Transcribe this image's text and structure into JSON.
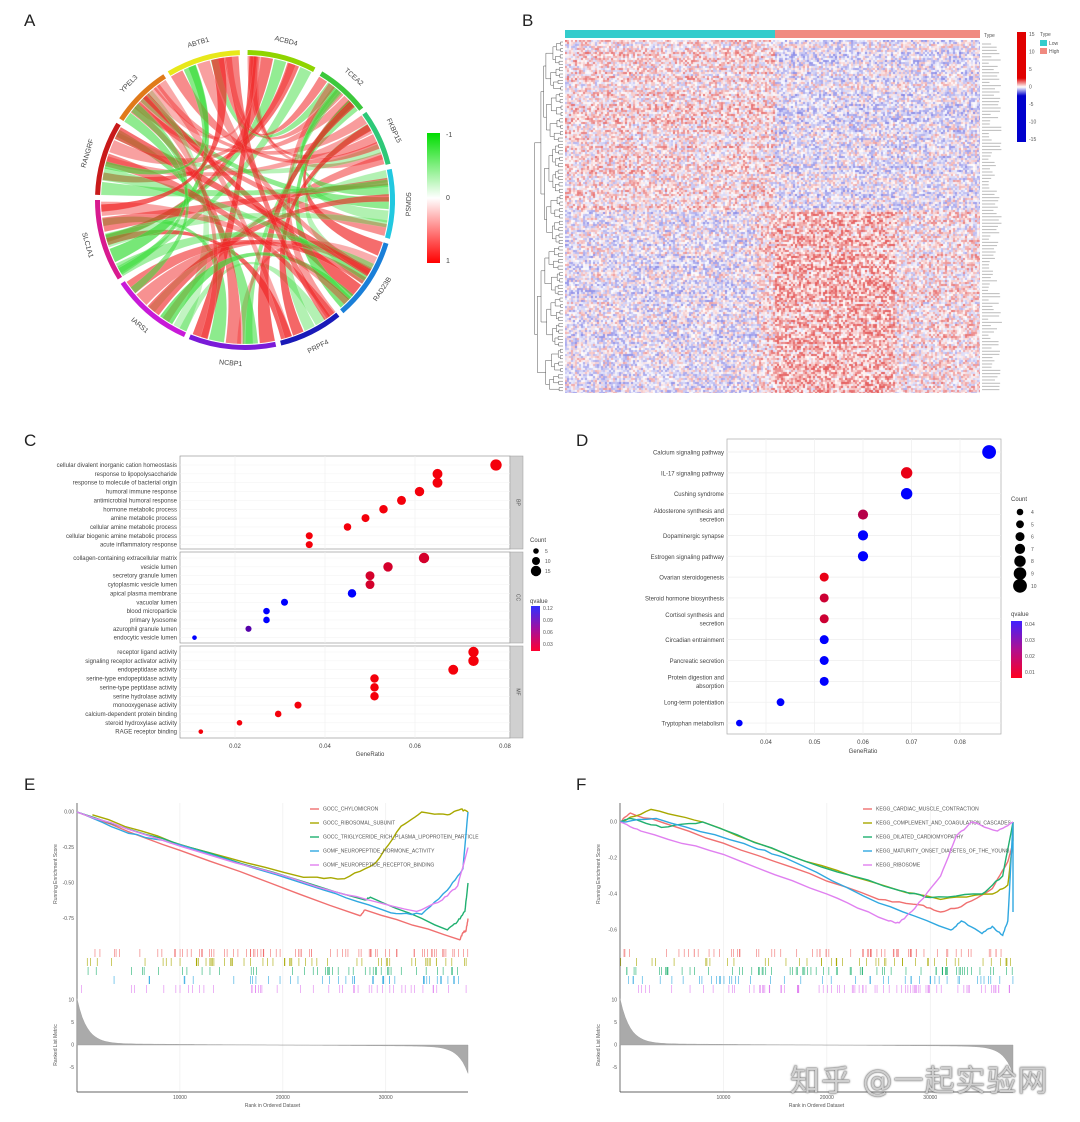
{
  "panel_labels": [
    "A",
    "B",
    "C",
    "D",
    "E",
    "F"
  ],
  "watermark": "知乎 @一起实验网",
  "chart_data": [
    {
      "panel": "A",
      "type": "chord",
      "genes": [
        {
          "name": "ACBD4",
          "color": "#8fd400"
        },
        {
          "name": "TCEA2",
          "color": "#3cc83c"
        },
        {
          "name": "FKBP15",
          "color": "#2ec878"
        },
        {
          "name": "PSMD5",
          "color": "#22c8e0"
        },
        {
          "name": "RAD23B",
          "color": "#1a7fd8"
        },
        {
          "name": "PRPF4",
          "color": "#1a1ab8"
        },
        {
          "name": "NCBP1",
          "color": "#7a1ad8"
        },
        {
          "name": "IARS1",
          "color": "#c81ad8"
        },
        {
          "name": "SLC1A1",
          "color": "#d81a8f"
        },
        {
          "name": "RANGRF",
          "color": "#c81a1a"
        },
        {
          "name": "YPEL3",
          "color": "#e07a1a"
        },
        {
          "name": "ABTB1",
          "color": "#e8e81a"
        }
      ],
      "colorbar": {
        "ticks": [
          "-1",
          "0",
          "1"
        ],
        "low_color": "#00dd00",
        "mid_color": "#ffffff",
        "high_color": "#ff0000"
      }
    },
    {
      "panel": "B",
      "type": "heatmap",
      "annotation_title": "Type",
      "groups": [
        {
          "name": "Low",
          "color": "#33cccc"
        },
        {
          "name": "High",
          "color": "#f08a80"
        }
      ],
      "legend_title": "Type",
      "colorbar_ticks": [
        "15",
        "10",
        "5",
        "0",
        "-5",
        "-10",
        "-15"
      ],
      "colors": {
        "high": "#e00000",
        "mid": "#ffffff",
        "low": "#0000cc"
      }
    },
    {
      "panel": "C",
      "type": "scatter",
      "xlabel": "GeneRatio",
      "xticks": [
        "0.02",
        "0.04",
        "0.06",
        "0.08"
      ],
      "xlim": [
        0.01,
        0.08
      ],
      "size_legend": {
        "title": "Count",
        "values": [
          5,
          10,
          15
        ]
      },
      "color_legend": {
        "title": "qvalue",
        "ticks": [
          "0.12",
          "0.09",
          "0.06",
          "0.03"
        ]
      },
      "facets": [
        {
          "name": "BP",
          "terms": [
            {
              "term": "cellular divalent inorganic cation homeostasis",
              "ratio": 0.078,
              "count": 17,
              "q": 0.005
            },
            {
              "term": "response to lipopolysaccharide",
              "ratio": 0.065,
              "count": 14,
              "q": 0.005
            },
            {
              "term": "response to molecule of bacterial origin",
              "ratio": 0.065,
              "count": 14,
              "q": 0.005
            },
            {
              "term": "humoral immune response",
              "ratio": 0.061,
              "count": 13,
              "q": 0.005
            },
            {
              "term": "antimicrobial humoral response",
              "ratio": 0.057,
              "count": 12,
              "q": 0.005
            },
            {
              "term": "hormone metabolic process",
              "ratio": 0.053,
              "count": 11,
              "q": 0.005
            },
            {
              "term": "amine metabolic process",
              "ratio": 0.049,
              "count": 10,
              "q": 0.005
            },
            {
              "term": "cellular amine metabolic process",
              "ratio": 0.045,
              "count": 9,
              "q": 0.005
            },
            {
              "term": "cellular biogenic amine metabolic process",
              "ratio": 0.0365,
              "count": 8,
              "q": 0.005
            },
            {
              "term": "acute inflammatory response",
              "ratio": 0.0365,
              "count": 8,
              "q": 0.005
            }
          ]
        },
        {
          "name": "CC",
          "terms": [
            {
              "term": "collagen-containing extracellular matrix",
              "ratio": 0.062,
              "count": 15,
              "q": 0.02
            },
            {
              "term": "vesicle lumen",
              "ratio": 0.054,
              "count": 13,
              "q": 0.02
            },
            {
              "term": "secretory granule lumen",
              "ratio": 0.05,
              "count": 12,
              "q": 0.02
            },
            {
              "term": "cytoplasmic vesicle lumen",
              "ratio": 0.05,
              "count": 12,
              "q": 0.02
            },
            {
              "term": "apical plasma membrane",
              "ratio": 0.046,
              "count": 11,
              "q": 0.12
            },
            {
              "term": "vacuolar lumen",
              "ratio": 0.031,
              "count": 8,
              "q": 0.12
            },
            {
              "term": "blood microparticle",
              "ratio": 0.027,
              "count": 7,
              "q": 0.12
            },
            {
              "term": "primary lysosome",
              "ratio": 0.027,
              "count": 7,
              "q": 0.12
            },
            {
              "term": "azurophil granule lumen",
              "ratio": 0.023,
              "count": 6,
              "q": 0.08
            },
            {
              "term": "endocytic vesicle lumen",
              "ratio": 0.011,
              "count": 3,
              "q": 0.12
            }
          ]
        },
        {
          "name": "MF",
          "terms": [
            {
              "term": "receptor ligand activity",
              "ratio": 0.073,
              "count": 15,
              "q": 0.005
            },
            {
              "term": "signaling receptor activator activity",
              "ratio": 0.073,
              "count": 15,
              "q": 0.005
            },
            {
              "term": "endopeptidase activity",
              "ratio": 0.0685,
              "count": 14,
              "q": 0.005
            },
            {
              "term": "serine-type endopeptidase activity",
              "ratio": 0.051,
              "count": 11,
              "q": 0.005
            },
            {
              "term": "serine-type peptidase activity",
              "ratio": 0.051,
              "count": 11,
              "q": 0.005
            },
            {
              "term": "serine hydrolase activity",
              "ratio": 0.051,
              "count": 11,
              "q": 0.005
            },
            {
              "term": "monooxygenase activity",
              "ratio": 0.034,
              "count": 8,
              "q": 0.005
            },
            {
              "term": "calcium-dependent protein binding",
              "ratio": 0.0296,
              "count": 7,
              "q": 0.005
            },
            {
              "term": "steroid hydroxylase activity",
              "ratio": 0.021,
              "count": 5,
              "q": 0.005
            },
            {
              "term": "RAGE receptor binding",
              "ratio": 0.0124,
              "count": 3,
              "q": 0.005
            }
          ]
        }
      ]
    },
    {
      "panel": "D",
      "type": "scatter",
      "xlabel": "GeneRatio",
      "xticks": [
        "0.04",
        "0.05",
        "0.06",
        "0.07",
        "0.08"
      ],
      "size_legend": {
        "title": "Count",
        "values": [
          4,
          5,
          6,
          7,
          8,
          9,
          10
        ]
      },
      "color_legend": {
        "title": "qvalue",
        "ticks": [
          "0.04",
          "0.03",
          "0.02",
          "0.01"
        ]
      },
      "terms": [
        {
          "term": "Calcium signaling pathway",
          "ratio": 0.086,
          "count": 10,
          "q": 0.04
        },
        {
          "term": "IL-17 signaling pathway",
          "ratio": 0.069,
          "count": 8,
          "q": 0.008
        },
        {
          "term": "Cushing syndrome",
          "ratio": 0.069,
          "count": 8,
          "q": 0.04
        },
        {
          "term": "Aldosterone synthesis and\nsecretion",
          "ratio": 0.06,
          "count": 7,
          "q": 0.015
        },
        {
          "term": "Dopaminergic synapse",
          "ratio": 0.06,
          "count": 7,
          "q": 0.04
        },
        {
          "term": "Estrogen signaling pathway",
          "ratio": 0.06,
          "count": 7,
          "q": 0.04
        },
        {
          "term": "Ovarian steroidogenesis",
          "ratio": 0.052,
          "count": 6,
          "q": 0.008
        },
        {
          "term": "Steroid hormone biosynthesis",
          "ratio": 0.052,
          "count": 6,
          "q": 0.012
        },
        {
          "term": "Cortisol synthesis and\nsecretion",
          "ratio": 0.052,
          "count": 6,
          "q": 0.012
        },
        {
          "term": "Circadian entrainment",
          "ratio": 0.052,
          "count": 6,
          "q": 0.04
        },
        {
          "term": "Pancreatic secretion",
          "ratio": 0.052,
          "count": 6,
          "q": 0.04
        },
        {
          "term": "Protein digestion and\nabsorption",
          "ratio": 0.052,
          "count": 6,
          "q": 0.04
        },
        {
          "term": "Long-term potentiation",
          "ratio": 0.043,
          "count": 5,
          "q": 0.04
        },
        {
          "term": "Tryptophan metabolism",
          "ratio": 0.0345,
          "count": 4,
          "q": 0.04
        }
      ]
    },
    {
      "panel": "E",
      "type": "line",
      "ylabel": "Running Enrichment Score",
      "ylabel2": "Ranked List Metric",
      "xlabel": "Rank in Ordered Dataset",
      "yticks": [
        "0.00",
        "-0.25",
        "-0.50",
        "-0.75"
      ],
      "yticks2": [
        "10",
        "5",
        "0",
        "-5"
      ],
      "xticks": [
        "10000",
        "20000",
        "30000"
      ],
      "series": [
        {
          "name": "GOCC_CHYLOMICRON",
          "color": "#f07070",
          "points": [
            [
              0,
              0
            ],
            [
              10000,
              -0.27
            ],
            [
              27500,
              -0.73
            ],
            [
              28000,
              -0.69
            ],
            [
              37200,
              -0.9
            ],
            [
              37500,
              -0.85
            ],
            [
              37800,
              -0.84
            ],
            [
              38000,
              -0.75
            ]
          ]
        },
        {
          "name": "GOCC_RIBOSOMAL_SUBUNIT",
          "color": "#a8a800",
          "points": [
            [
              1500,
              -0.02
            ],
            [
              11000,
              -0.25
            ],
            [
              22000,
              -0.46
            ],
            [
              26000,
              -0.47
            ],
            [
              29000,
              -0.36
            ],
            [
              31500,
              -0.1
            ],
            [
              33500,
              0
            ],
            [
              36000,
              -0.02
            ],
            [
              37300,
              0.02
            ],
            [
              38000,
              0
            ]
          ]
        },
        {
          "name": "GOCC_TRIGLYCERIDE_RICH_PLASMA_LIPOPROTEIN_PARTICLE",
          "color": "#20b070",
          "points": [
            [
              0,
              0
            ],
            [
              10000,
              -0.23
            ],
            [
              28000,
              -0.62
            ],
            [
              28500,
              -0.6
            ],
            [
              36000,
              -0.83
            ],
            [
              37000,
              -0.77
            ],
            [
              37700,
              -0.7
            ],
            [
              38000,
              -0.5
            ]
          ]
        },
        {
          "name": "GOMF_NEUROPEPTIDE_HORMONE_ACTIVITY",
          "color": "#30a8e0",
          "points": [
            [
              0,
              0
            ],
            [
              5000,
              -0.15
            ],
            [
              10000,
              -0.23
            ],
            [
              24000,
              -0.55
            ],
            [
              30500,
              -0.71
            ],
            [
              33500,
              -0.72
            ],
            [
              36000,
              -0.55
            ],
            [
              37500,
              -0.4
            ],
            [
              38000,
              0
            ]
          ]
        },
        {
          "name": "GOMF_NEUROPEPTIDE_RECEPTOR_BINDING",
          "color": "#e080f0",
          "points": [
            [
              0,
              0
            ],
            [
              10000,
              -0.24
            ],
            [
              26000,
              -0.58
            ],
            [
              33000,
              -0.7
            ],
            [
              35500,
              -0.62
            ],
            [
              37000,
              -0.52
            ],
            [
              38000,
              -0.25
            ]
          ]
        }
      ]
    },
    {
      "panel": "F",
      "type": "line",
      "ylabel": "Running Enrichment Score",
      "ylabel2": "Ranked List Metric",
      "xlabel": "Rank in Ordered Dataset",
      "yticks": [
        "0.0",
        "-0.2",
        "-0.4",
        "-0.6"
      ],
      "yticks2": [
        "10",
        "5",
        "0",
        "-5"
      ],
      "xticks": [
        "10000",
        "20000",
        "30000"
      ],
      "series": [
        {
          "name": "KEGG_CARDIAC_MUSCLE_CONTRACTION",
          "color": "#f07070",
          "points": [
            [
              0,
              0
            ],
            [
              1000,
              0.05
            ],
            [
              5000,
              -0.02
            ],
            [
              15000,
              -0.22
            ],
            [
              25000,
              -0.43
            ],
            [
              29000,
              -0.46
            ],
            [
              31000,
              -0.5
            ],
            [
              33000,
              -0.47
            ],
            [
              36000,
              -0.37
            ],
            [
              37500,
              -0.22
            ],
            [
              38000,
              -0.12
            ]
          ]
        },
        {
          "name": "KEGG_COMPLEMENT_AND_COAGULATION_CASCADES",
          "color": "#a8a800",
          "points": [
            [
              0,
              0
            ],
            [
              3000,
              0.07
            ],
            [
              8000,
              0
            ],
            [
              18000,
              -0.22
            ],
            [
              27000,
              -0.38
            ],
            [
              31000,
              -0.43
            ],
            [
              36000,
              -0.4
            ],
            [
              37500,
              -0.35
            ],
            [
              38000,
              -0.1
            ],
            [
              38000,
              0
            ]
          ]
        },
        {
          "name": "KEGG_DILATED_CARDIOMYOPATHY",
          "color": "#20b070",
          "points": [
            [
              0,
              0
            ],
            [
              1000,
              0.02
            ],
            [
              4000,
              -0.03
            ],
            [
              8000,
              0
            ],
            [
              18000,
              -0.22
            ],
            [
              27000,
              -0.38
            ],
            [
              30000,
              -0.42
            ],
            [
              35000,
              -0.4
            ],
            [
              37000,
              -0.3
            ],
            [
              38000,
              0
            ]
          ]
        },
        {
          "name": "KEGG_MATURITY_ONSET_DIABETES_OF_THE_YOUNG",
          "color": "#30a8e0",
          "points": [
            [
              0,
              0
            ],
            [
              3500,
              0.02
            ],
            [
              12000,
              -0.12
            ],
            [
              16000,
              -0.2
            ],
            [
              25000,
              -0.45
            ],
            [
              32000,
              -0.6
            ],
            [
              33000,
              -0.55
            ],
            [
              35000,
              -0.62
            ],
            [
              36000,
              -0.58
            ],
            [
              37000,
              -0.63
            ],
            [
              37500,
              -0.55
            ],
            [
              38000,
              0
            ],
            [
              38000,
              -0.5
            ]
          ]
        },
        {
          "name": "KEGG_RIBOSOME",
          "color": "#e080f0",
          "points": [
            [
              0,
              0
            ],
            [
              2000,
              -0.05
            ],
            [
              10000,
              -0.18
            ],
            [
              20000,
              -0.4
            ],
            [
              26000,
              -0.55
            ],
            [
              27000,
              -0.56
            ],
            [
              28500,
              -0.48
            ],
            [
              31000,
              -0.3
            ],
            [
              32500,
              -0.08
            ],
            [
              34000,
              0
            ],
            [
              36500,
              -0.05
            ],
            [
              38000,
              0
            ]
          ]
        }
      ]
    }
  ]
}
